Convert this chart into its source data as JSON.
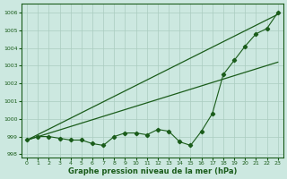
{
  "xlabel": "Graphe pression niveau de la mer (hPa)",
  "xlim": [
    -0.5,
    23.5
  ],
  "ylim": [
    997.8,
    1006.5
  ],
  "yticks": [
    998,
    999,
    1000,
    1001,
    1002,
    1003,
    1004,
    1005,
    1006
  ],
  "xticks": [
    0,
    1,
    2,
    3,
    4,
    5,
    6,
    7,
    8,
    9,
    10,
    11,
    12,
    13,
    14,
    15,
    16,
    17,
    18,
    19,
    20,
    21,
    22,
    23
  ],
  "bg_color": "#cce8e0",
  "line_color": "#1a5c1a",
  "grid_color": "#aaccc0",
  "data_x": [
    0,
    1,
    2,
    3,
    4,
    5,
    6,
    7,
    8,
    9,
    10,
    11,
    12,
    13,
    14,
    15,
    16,
    17,
    18,
    19,
    20,
    21,
    22,
    23
  ],
  "data_y": [
    998.8,
    999.0,
    999.0,
    998.9,
    998.8,
    998.8,
    998.6,
    998.5,
    999.0,
    999.2,
    999.2,
    999.1,
    999.4,
    999.3,
    998.7,
    998.5,
    999.3,
    1000.3,
    1002.5,
    1003.3,
    1004.1,
    1004.8,
    1005.1,
    1006.0
  ],
  "trend1_x": [
    0,
    23
  ],
  "trend1_y": [
    998.8,
    1005.9
  ],
  "trend2_x": [
    0,
    23
  ],
  "trend2_y": [
    998.8,
    1003.2
  ]
}
